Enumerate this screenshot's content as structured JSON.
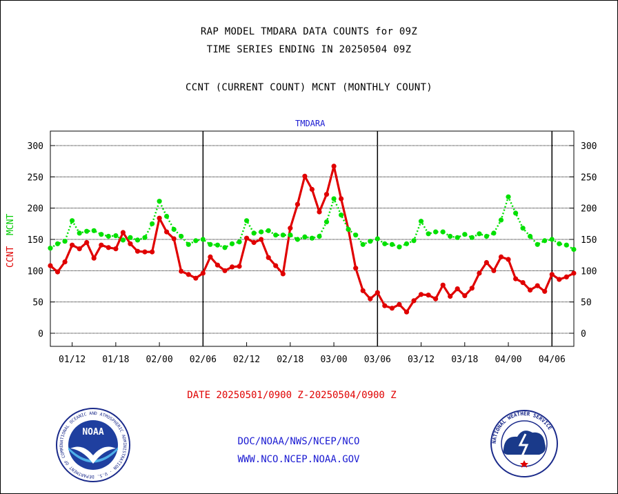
{
  "header": {
    "title_line1": "RAP MODEL TMDARA DATA COUNTS for 09Z",
    "title_line2": "TIME SERIES ENDING IN 20250504 09Z",
    "subtitle": "CCNT (CURRENT COUNT) MCNT (MONTHLY COUNT)"
  },
  "footer": {
    "date_range": "DATE 20250501/0900 Z-20250504/0900 Z",
    "link1": "DOC/NOAA/NWS/NCEP/NCO",
    "link2": "WWW.NCO.NCEP.NOAA.GOV"
  },
  "logos": {
    "noaa_center": "NOAA",
    "noaa_ring": "NATIONAL OCEANIC AND ATMOSPHERIC ADMINISTRATION · U.S. DEPARTMENT OF COMMERCE",
    "nws_ring": "NATIONAL WEATHER SERVICE"
  },
  "colors": {
    "ccnt": "#e00000",
    "mcnt": "#00e000",
    "plot_label": "#1a1ad2",
    "footer_link": "#1a1ad2",
    "date_text": "#e00000"
  },
  "chart_data": {
    "type": "line",
    "plot_label": "TMDARA",
    "ylabel_ccnt": "CCNT",
    "ylabel_mcnt": "MCNT",
    "ylim": [
      -20,
      325
    ],
    "yticks": [
      0,
      50,
      100,
      150,
      200,
      250,
      300
    ],
    "x_tick_labels": [
      "01/12",
      "01/18",
      "02/00",
      "02/06",
      "02/12",
      "02/18",
      "03/00",
      "03/06",
      "03/12",
      "03/18",
      "04/00",
      "04/06"
    ],
    "x_tick_hours": [
      3,
      9,
      15,
      21,
      27,
      33,
      39,
      45,
      51,
      57,
      63,
      69
    ],
    "x_range_hours": [
      0,
      72
    ],
    "day_boundaries_hours": [
      21,
      45,
      69
    ],
    "grid": true,
    "series": [
      {
        "name": "CCNT",
        "color": "#e00000",
        "style": "solid",
        "values": [
          108,
          98,
          114,
          141,
          135,
          145,
          120,
          141,
          137,
          135,
          161,
          143,
          131,
          130,
          130,
          184,
          162,
          151,
          99,
          94,
          88,
          96,
          122,
          109,
          100,
          106,
          107,
          152,
          145,
          150,
          121,
          108,
          95,
          168,
          206,
          251,
          230,
          194,
          222,
          267,
          215,
          166,
          104,
          68,
          55,
          65,
          44,
          40,
          46,
          34,
          52,
          62,
          61,
          55,
          77,
          59,
          71,
          60,
          72,
          96,
          113,
          100,
          122,
          118,
          87,
          81,
          69,
          76,
          67,
          94,
          86,
          90,
          96
        ]
      },
      {
        "name": "MCNT",
        "color": "#00e000",
        "style": "dotted",
        "values": [
          136,
          143,
          147,
          180,
          160,
          163,
          164,
          158,
          155,
          156,
          149,
          153,
          149,
          153,
          175,
          211,
          187,
          166,
          155,
          142,
          148,
          150,
          142,
          141,
          137,
          143,
          146,
          180,
          160,
          162,
          164,
          157,
          157,
          157,
          150,
          154,
          152,
          155,
          178,
          215,
          189,
          166,
          157,
          142,
          147,
          151,
          143,
          142,
          138,
          143,
          148,
          179,
          159,
          162,
          162,
          155,
          153,
          158,
          153,
          159,
          155,
          160,
          181,
          218,
          192,
          168,
          155,
          142,
          148,
          150,
          143,
          141,
          134
        ]
      }
    ]
  }
}
